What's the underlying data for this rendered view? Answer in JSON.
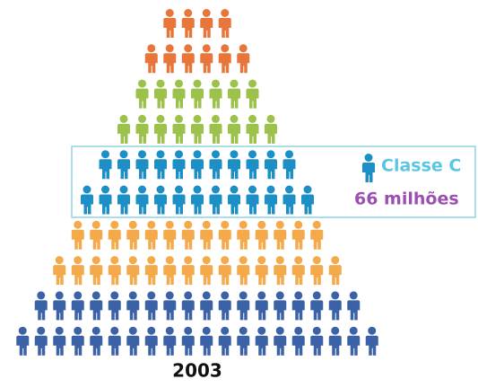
{
  "year": "2003",
  "highlight": {
    "label": "Classe C",
    "value": "66 milhões",
    "label_color": "#5cc6e0",
    "value_color": "#9b4fb0"
  },
  "rows": [
    {
      "color": "#e8763a",
      "count": 4
    },
    {
      "color": "#e8763a",
      "count": 6
    },
    {
      "color": "#9cc24c",
      "count": 7
    },
    {
      "color": "#9cc24c",
      "count": 9
    },
    {
      "color": "#1b8fc6",
      "count": 11
    },
    {
      "color": "#1b8fc6",
      "count": 13
    },
    {
      "color": "#f4a94b",
      "count": 14
    },
    {
      "color": "#f4a94b",
      "count": 16
    },
    {
      "color": "#3b62a6",
      "count": 18
    },
    {
      "color": "#3b62a6",
      "count": 20
    }
  ]
}
